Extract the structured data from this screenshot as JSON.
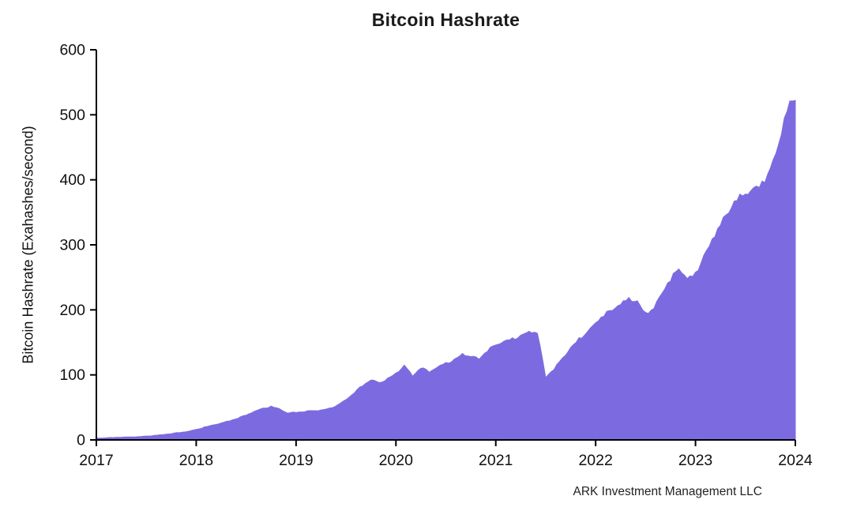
{
  "figure": {
    "title": "Bitcoin Hashrate",
    "attribution": "ARK Investment Management LLC"
  },
  "chart_data": {
    "type": "area",
    "title": "Bitcoin Hashrate",
    "xlabel": "",
    "ylabel": "Bitcoin Hashrate (Exahashes/second)",
    "xlim": [
      2017,
      2024
    ],
    "ylim": [
      0,
      600
    ],
    "x_ticks": [
      2017,
      2018,
      2019,
      2020,
      2021,
      2022,
      2023,
      2024
    ],
    "y_ticks": [
      0,
      100,
      200,
      300,
      400,
      500,
      600
    ],
    "grid": false,
    "legend": "none",
    "fill_color": "#7c6be0",
    "axis_color": "#000000",
    "text_color": "#111111",
    "series": [
      {
        "name": "Bitcoin Hashrate (EH/s)",
        "points": [
          [
            2017.0,
            2.5
          ],
          [
            2017.083,
            3
          ],
          [
            2017.167,
            3.5
          ],
          [
            2017.25,
            4
          ],
          [
            2017.333,
            4.5
          ],
          [
            2017.417,
            5
          ],
          [
            2017.5,
            6
          ],
          [
            2017.583,
            7
          ],
          [
            2017.667,
            8
          ],
          [
            2017.75,
            9.5
          ],
          [
            2017.833,
            11
          ],
          [
            2017.917,
            13
          ],
          [
            2018.0,
            16
          ],
          [
            2018.083,
            20
          ],
          [
            2018.167,
            23
          ],
          [
            2018.25,
            26
          ],
          [
            2018.333,
            29
          ],
          [
            2018.417,
            33
          ],
          [
            2018.5,
            38
          ],
          [
            2018.583,
            44
          ],
          [
            2018.667,
            49
          ],
          [
            2018.75,
            52
          ],
          [
            2018.833,
            48
          ],
          [
            2018.917,
            41
          ],
          [
            2019.0,
            42
          ],
          [
            2019.083,
            43
          ],
          [
            2019.167,
            45
          ],
          [
            2019.25,
            46
          ],
          [
            2019.333,
            49
          ],
          [
            2019.417,
            54
          ],
          [
            2019.5,
            62
          ],
          [
            2019.583,
            72
          ],
          [
            2019.667,
            83
          ],
          [
            2019.75,
            92
          ],
          [
            2019.833,
            88
          ],
          [
            2019.917,
            95
          ],
          [
            2020.0,
            103
          ],
          [
            2020.083,
            115
          ],
          [
            2020.167,
            98
          ],
          [
            2020.25,
            110
          ],
          [
            2020.333,
            104
          ],
          [
            2020.417,
            112
          ],
          [
            2020.5,
            119
          ],
          [
            2020.583,
            124
          ],
          [
            2020.667,
            133
          ],
          [
            2020.75,
            128
          ],
          [
            2020.833,
            124
          ],
          [
            2020.917,
            136
          ],
          [
            2021.0,
            146
          ],
          [
            2021.083,
            152
          ],
          [
            2021.167,
            157
          ],
          [
            2021.25,
            161
          ],
          [
            2021.333,
            167
          ],
          [
            2021.417,
            164
          ],
          [
            2021.5,
            96
          ],
          [
            2021.583,
            108
          ],
          [
            2021.667,
            126
          ],
          [
            2021.75,
            142
          ],
          [
            2021.833,
            157
          ],
          [
            2021.917,
            166
          ],
          [
            2022.0,
            180
          ],
          [
            2022.083,
            190
          ],
          [
            2022.167,
            199
          ],
          [
            2022.25,
            208
          ],
          [
            2022.333,
            219
          ],
          [
            2022.417,
            214
          ],
          [
            2022.5,
            196
          ],
          [
            2022.583,
            202
          ],
          [
            2022.667,
            226
          ],
          [
            2022.75,
            244
          ],
          [
            2022.833,
            263
          ],
          [
            2022.917,
            248
          ],
          [
            2023.0,
            258
          ],
          [
            2023.083,
            284
          ],
          [
            2023.167,
            309
          ],
          [
            2023.25,
            330
          ],
          [
            2023.333,
            349
          ],
          [
            2023.417,
            368
          ],
          [
            2023.5,
            378
          ],
          [
            2023.583,
            388
          ],
          [
            2023.667,
            398
          ],
          [
            2023.75,
            418
          ],
          [
            2023.833,
            455
          ],
          [
            2023.917,
            505
          ],
          [
            2024.0,
            522
          ]
        ]
      }
    ]
  }
}
